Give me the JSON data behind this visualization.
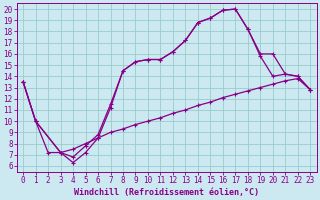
{
  "xlabel": "Windchill (Refroidissement éolien,°C)",
  "bg_color": "#cce8f0",
  "line_color": "#880088",
  "grid_color": "#99cccc",
  "xlim": [
    -0.5,
    23.5
  ],
  "ylim": [
    5.5,
    20.5
  ],
  "xticks": [
    0,
    1,
    2,
    3,
    4,
    5,
    6,
    7,
    8,
    9,
    10,
    11,
    12,
    13,
    14,
    15,
    16,
    17,
    18,
    19,
    20,
    21,
    22,
    23
  ],
  "yticks": [
    6,
    7,
    8,
    9,
    10,
    11,
    12,
    13,
    14,
    15,
    16,
    17,
    18,
    19,
    20
  ],
  "line1_x": [
    0,
    1,
    2,
    3,
    4,
    5,
    6,
    7,
    8,
    9,
    10,
    11,
    12,
    13,
    14,
    15,
    16,
    17,
    18,
    19,
    20,
    21,
    22,
    23
  ],
  "line1_y": [
    13.5,
    10.0,
    7.2,
    7.2,
    7.5,
    8.0,
    8.5,
    9.0,
    9.3,
    9.7,
    10.0,
    10.3,
    10.7,
    11.0,
    11.4,
    11.7,
    12.1,
    12.4,
    12.7,
    13.0,
    13.3,
    13.6,
    13.8,
    12.8
  ],
  "line2_x": [
    0,
    1,
    3,
    4,
    5,
    6,
    7,
    8,
    9,
    10,
    11,
    12,
    13,
    14,
    15,
    16,
    17,
    18,
    19,
    20,
    21,
    22,
    23
  ],
  "line2_y": [
    13.5,
    10.0,
    7.2,
    6.3,
    7.2,
    8.5,
    11.2,
    14.5,
    15.3,
    15.5,
    15.5,
    16.2,
    17.2,
    18.8,
    19.2,
    19.9,
    20.0,
    18.2,
    15.8,
    14.0,
    14.2,
    14.0,
    12.8
  ],
  "line3_x": [
    0,
    1,
    3,
    4,
    5,
    6,
    7,
    8,
    9,
    10,
    11,
    12,
    13,
    14,
    15,
    16,
    17,
    18,
    19,
    20,
    21,
    22,
    23
  ],
  "line3_y": [
    13.5,
    10.0,
    7.2,
    6.8,
    7.8,
    8.8,
    11.5,
    14.5,
    15.3,
    15.5,
    15.5,
    16.2,
    17.2,
    18.8,
    19.2,
    19.9,
    20.0,
    18.2,
    16.0,
    16.0,
    14.2,
    14.0,
    12.8
  ],
  "xlabel_fontsize": 6,
  "tick_fontsize": 5.5
}
